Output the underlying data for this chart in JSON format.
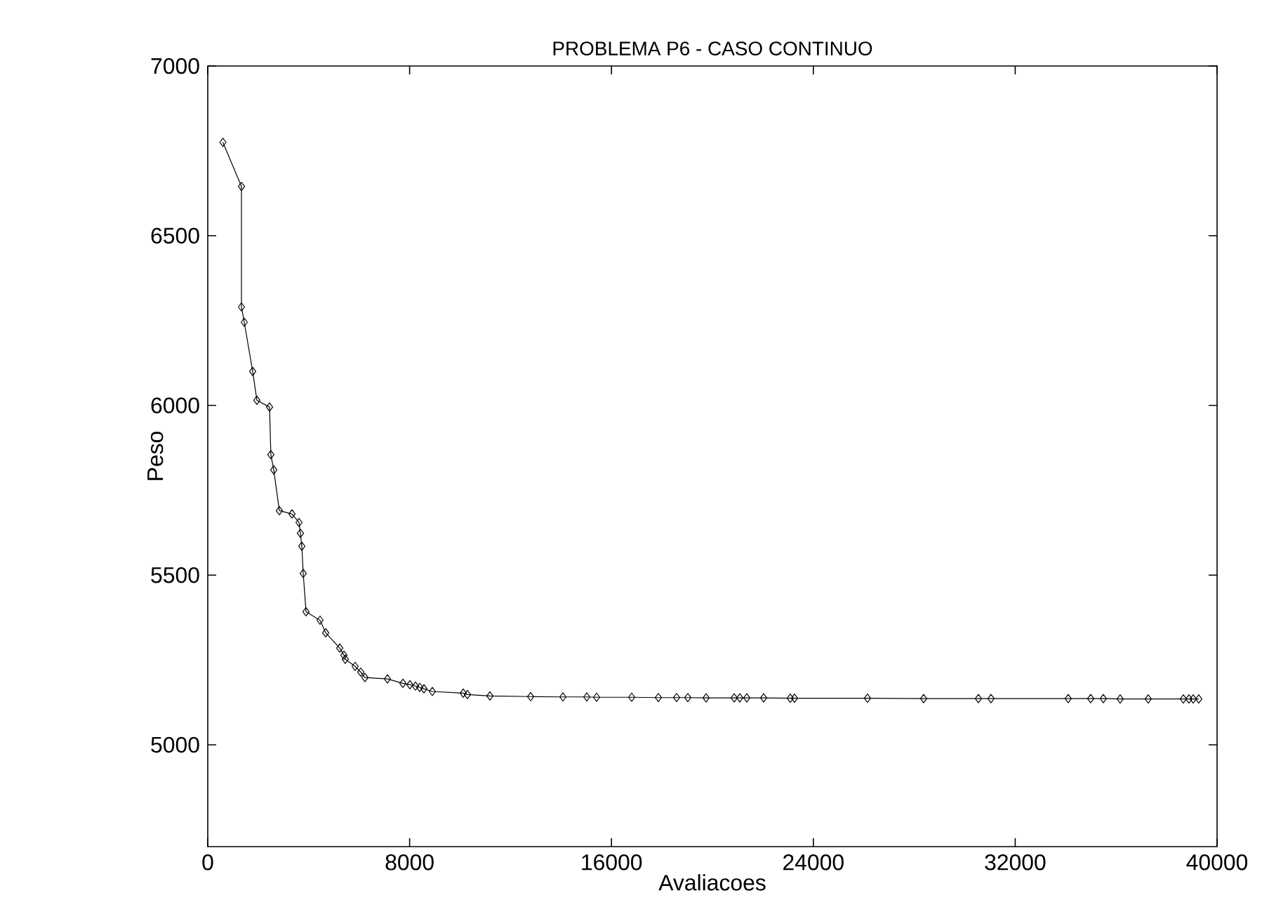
{
  "chart_data": {
    "type": "line",
    "title": "PROBLEMA P6 - CASO CONTINUO",
    "xlabel": "Avaliacoes",
    "ylabel": "Peso",
    "xlim": [
      0,
      40000
    ],
    "xticks": [
      0,
      8000,
      16000,
      24000,
      32000,
      40000
    ],
    "ylim": [
      4700,
      7000
    ],
    "yticks": [
      5000,
      5500,
      6000,
      6500,
      7000
    ],
    "grid": false,
    "marker": "diamond",
    "line_style": "solid",
    "series": [
      {
        "color": "#000000",
        "x": [
          600,
          1335,
          1335,
          1446,
          1780,
          1947,
          2448,
          2500,
          2615,
          2837,
          3338,
          3616,
          3672,
          3727,
          3783,
          3894,
          4450,
          4673,
          5229,
          5396,
          5450,
          5840,
          6063,
          6230,
          7120,
          7733,
          8011,
          8233,
          8400,
          8567,
          8900,
          10124,
          10291,
          11181,
          12795,
          14074,
          15020,
          15410,
          16800,
          17857,
          18580,
          19025,
          19750,
          20862,
          21085,
          21362,
          22030,
          23086,
          23253,
          26146,
          28371,
          30541,
          31041,
          34101,
          34991,
          35491,
          36159,
          37271,
          38662,
          38885,
          39052,
          39274
        ],
        "values": [
          6775,
          6645,
          6290,
          6245,
          6100,
          6015,
          5995,
          5855,
          5810,
          5690,
          5680,
          5655,
          5623,
          5585,
          5505,
          5392,
          5367,
          5330,
          5285,
          5264,
          5252,
          5231,
          5214,
          5198,
          5194,
          5181,
          5177,
          5173,
          5169,
          5165,
          5157,
          5152,
          5148,
          5144,
          5142,
          5141,
          5141,
          5140,
          5140,
          5139,
          5139,
          5139,
          5138,
          5138,
          5138,
          5138,
          5138,
          5137,
          5137,
          5137,
          5136,
          5136,
          5136,
          5136,
          5136,
          5136,
          5135,
          5135,
          5135,
          5135,
          5135,
          5135
        ]
      }
    ]
  }
}
